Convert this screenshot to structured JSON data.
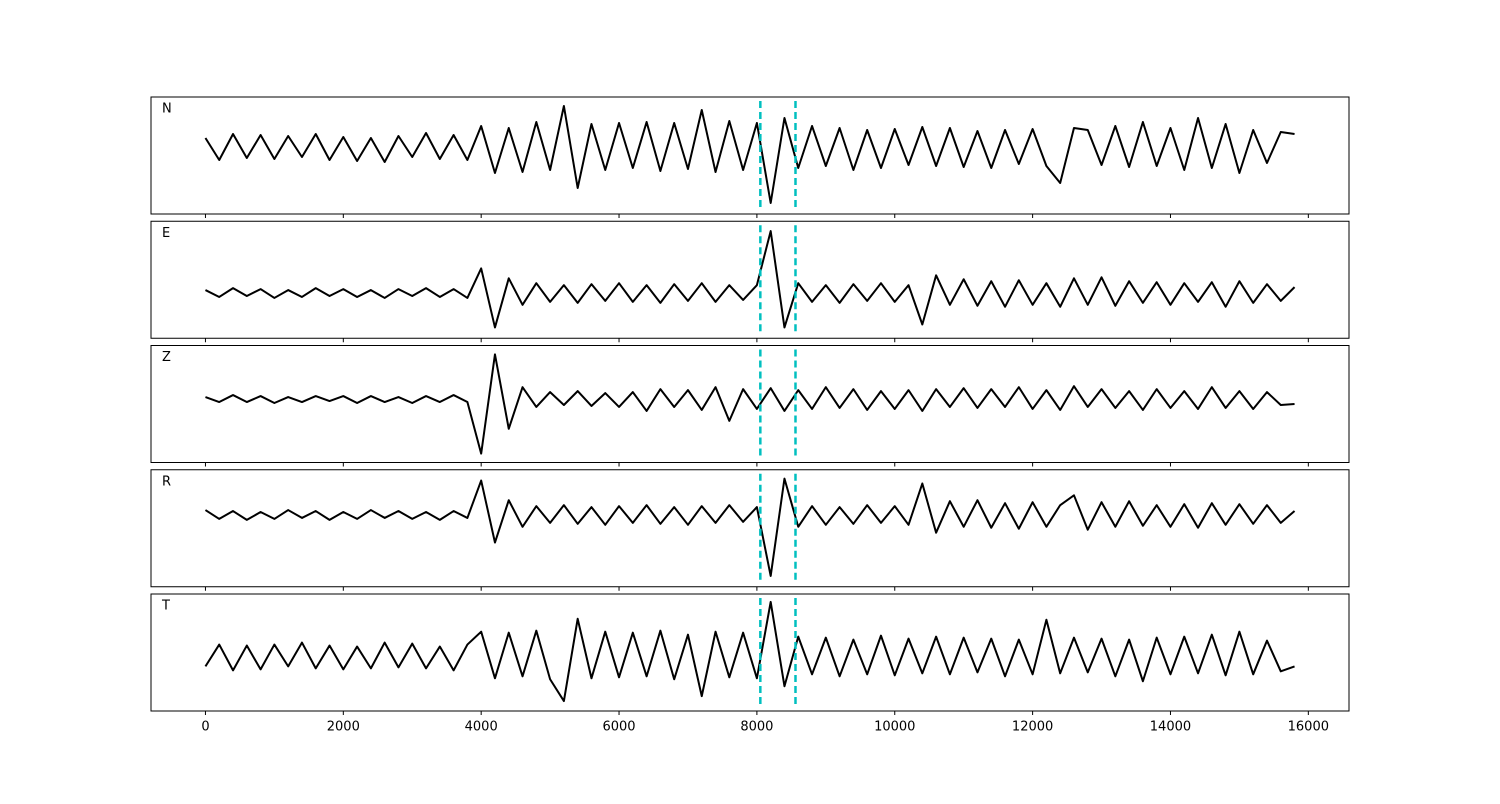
{
  "chart_data": {
    "type": "line",
    "subplots": true,
    "x": [
      0,
      200,
      400,
      600,
      800,
      1000,
      1200,
      1400,
      1600,
      1800,
      2000,
      2200,
      2400,
      2600,
      2800,
      3000,
      3200,
      3400,
      3600,
      3800,
      4000,
      4200,
      4400,
      4600,
      4800,
      5000,
      5200,
      5400,
      5600,
      5800,
      6000,
      6200,
      6400,
      6600,
      6800,
      7000,
      7200,
      7400,
      7600,
      7800,
      8000,
      8200,
      8400,
      8600,
      8800,
      9000,
      9200,
      9400,
      9600,
      9800,
      10000,
      10200,
      10400,
      10600,
      10800,
      11000,
      11200,
      11400,
      11600,
      11800,
      12000,
      12200,
      12400,
      12600,
      12800,
      13000,
      13200,
      13400,
      13600,
      13800,
      14000,
      14200,
      14400,
      14600,
      14800,
      15000,
      15200,
      15400,
      15600,
      15800
    ],
    "xlim": [
      -790,
      16590
    ],
    "xticks": [
      0,
      2000,
      4000,
      6000,
      8000,
      10000,
      12000,
      14000,
      16000
    ],
    "vlines": [
      8050,
      8560
    ],
    "vline_color": "#00bfbf",
    "vline_style": "dashed",
    "series": [
      {
        "name": "N",
        "color": "#000000",
        "ylim": [
          -66,
          51
        ],
        "values": [
          10,
          -12,
          14,
          -10,
          13,
          -11,
          12,
          -9,
          14,
          -12,
          11,
          -13,
          10,
          -14,
          12,
          -9,
          15,
          -11,
          13,
          -12,
          22,
          -25,
          20,
          -24,
          26,
          -22,
          42,
          -40,
          24,
          -22,
          25,
          -20,
          26,
          -23,
          25,
          -21,
          38,
          -24,
          27,
          -22,
          25,
          -55,
          30,
          -20,
          22,
          -18,
          20,
          -22,
          18,
          -20,
          19,
          -17,
          21,
          -18,
          20,
          -19,
          17,
          -20,
          18,
          -16,
          19,
          -18,
          -35,
          20,
          18,
          -17,
          22,
          -19,
          26,
          -18,
          20,
          -22,
          30,
          -20,
          24,
          -25,
          18,
          -15,
          16,
          14
        ]
      },
      {
        "name": "E",
        "color": "#000000",
        "ylim": [
          -46,
          73
        ],
        "values": [
          3,
          -4,
          5,
          -3,
          4,
          -5,
          3,
          -4,
          5,
          -3,
          4,
          -4,
          3,
          -5,
          4,
          -3,
          5,
          -4,
          4,
          -5,
          25,
          -35,
          15,
          -12,
          10,
          -9,
          8,
          -10,
          9,
          -8,
          10,
          -9,
          8,
          -10,
          9,
          -8,
          10,
          -9,
          8,
          -7,
          8,
          63,
          -35,
          10,
          -9,
          8,
          -10,
          9,
          -8,
          10,
          -9,
          8,
          -32,
          18,
          -12,
          14,
          -13,
          12,
          -14,
          13,
          -12,
          10,
          -14,
          15,
          -12,
          16,
          -13,
          12,
          -10,
          11,
          -12,
          10,
          -9,
          11,
          -14,
          12,
          -10,
          9,
          -8,
          6
        ]
      },
      {
        "name": "Z",
        "color": "#000000",
        "ylim": [
          -64,
          54
        ],
        "values": [
          2,
          -3,
          4,
          -3,
          3,
          -4,
          2,
          -3,
          3,
          -2,
          3,
          -4,
          3,
          -3,
          2,
          -4,
          3,
          -3,
          4,
          -3,
          -55,
          45,
          -30,
          12,
          -8,
          7,
          -6,
          8,
          -7,
          6,
          -8,
          7,
          -12,
          10,
          -8,
          9,
          -11,
          12,
          -22,
          10,
          -10,
          11,
          -12,
          9,
          -10,
          12,
          -9,
          10,
          -11,
          8,
          -10,
          9,
          -12,
          10,
          -8,
          11,
          -9,
          10,
          -8,
          12,
          -10,
          9,
          -11,
          13,
          -8,
          10,
          -9,
          8,
          -11,
          10,
          -9,
          8,
          -10,
          12,
          -9,
          8,
          -10,
          7,
          -6,
          -5
        ]
      },
      {
        "name": "R",
        "color": "#000000",
        "ylim": [
          -73,
          46
        ],
        "values": [
          5,
          -4,
          4,
          -5,
          3,
          -4,
          5,
          -3,
          4,
          -5,
          3,
          -4,
          5,
          -3,
          4,
          -4,
          3,
          -5,
          4,
          -3,
          35,
          -28,
          15,
          -12,
          9,
          -8,
          10,
          -9,
          8,
          -10,
          9,
          -8,
          10,
          -9,
          8,
          -10,
          9,
          -8,
          10,
          -7,
          8,
          -62,
          37,
          -12,
          9,
          -10,
          8,
          -9,
          10,
          -8,
          9,
          -10,
          32,
          -18,
          14,
          -12,
          15,
          -13,
          12,
          -14,
          13,
          -12,
          10,
          20,
          -15,
          13,
          -12,
          14,
          -11,
          10,
          -12,
          11,
          -13,
          12,
          -10,
          11,
          -9,
          10,
          -8,
          4
        ]
      },
      {
        "name": "T",
        "color": "#000000",
        "ylim": [
          -55,
          63
        ],
        "values": [
          -10,
          12,
          -14,
          11,
          -13,
          12,
          -10,
          14,
          -12,
          11,
          -13,
          10,
          -12,
          14,
          -11,
          13,
          -12,
          10,
          -14,
          12,
          25,
          -22,
          24,
          -20,
          26,
          -23,
          -45,
          38,
          -22,
          25,
          -21,
          24,
          -20,
          26,
          -23,
          22,
          -40,
          25,
          -21,
          24,
          -22,
          55,
          -30,
          20,
          -18,
          19,
          -20,
          17,
          -18,
          21,
          -19,
          18,
          -17,
          20,
          -18,
          19,
          -16,
          18,
          -20,
          17,
          -18,
          37,
          -17,
          19,
          -16,
          18,
          -20,
          17,
          -25,
          19,
          -18,
          20,
          -17,
          22,
          -19,
          25,
          -18,
          16,
          -15,
          -10
        ]
      }
    ]
  }
}
